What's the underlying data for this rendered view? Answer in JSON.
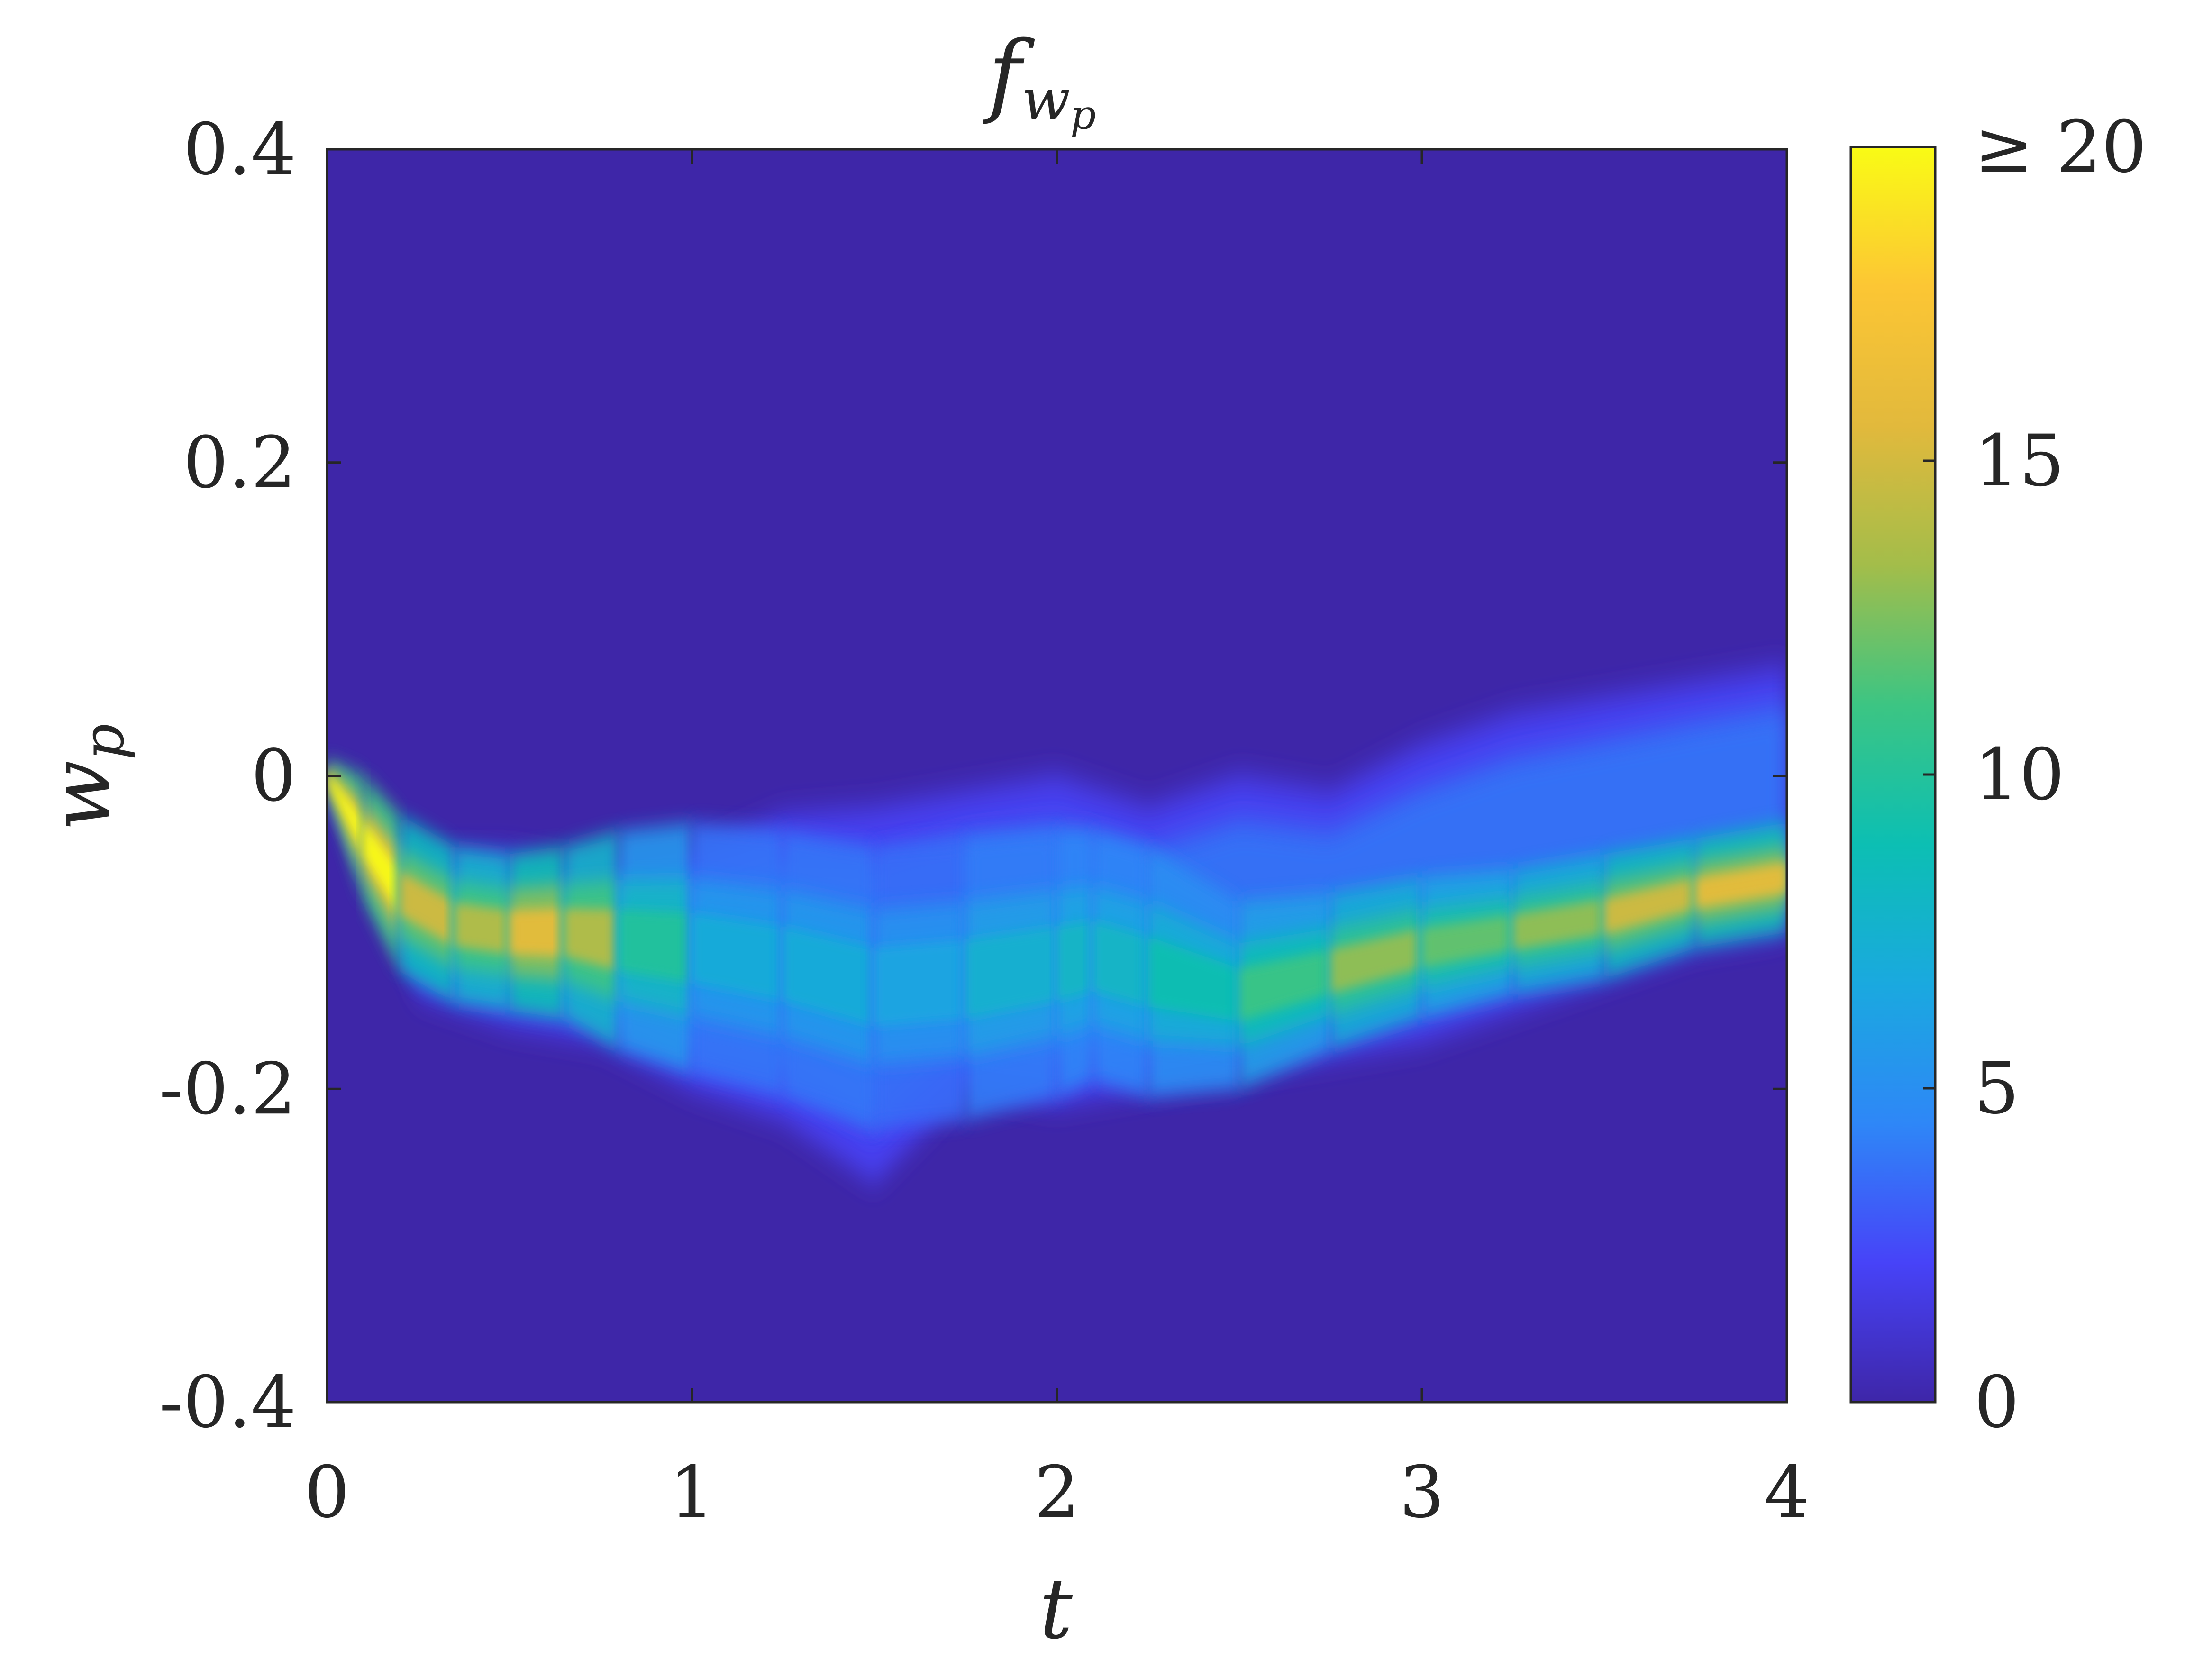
{
  "chart_data": {
    "type": "heatmap",
    "title": {
      "base": "f",
      "subscript": "w",
      "sub_subscript": "p"
    },
    "xlabel": "t",
    "ylabel": {
      "base": "w",
      "subscript": "p"
    },
    "xlim": [
      0,
      4
    ],
    "ylim": [
      -0.4,
      0.4
    ],
    "x_ticks": [
      0,
      1,
      2,
      3,
      4
    ],
    "x_tick_labels": [
      "0",
      "1",
      "2",
      "3",
      "4"
    ],
    "y_ticks": [
      -0.4,
      -0.2,
      0,
      0.2,
      0.4
    ],
    "y_tick_labels": [
      "-0.4",
      "-0.2",
      "0",
      "0.2",
      "0.4"
    ],
    "colorbar": {
      "range": [
        0,
        20
      ],
      "ticks": [
        0,
        5,
        10,
        15,
        20
      ],
      "tick_labels": [
        "0",
        "5",
        "10",
        "15",
        "≥ 20"
      ],
      "colormap": "parula",
      "colormap_stops": [
        "#3e26a8",
        "#4743f8",
        "#2e87f7",
        "#1aa9df",
        "#0cbfb3",
        "#3cc583",
        "#a3bd4a",
        "#e2b93c",
        "#fcc634",
        "#f9fb15"
      ]
    },
    "background_color": "#3e26a8",
    "density_ridge": {
      "description_units": "t, center w_p, half-width, peak density",
      "t": [
        0,
        0.1,
        0.2,
        0.35,
        0.5,
        0.65,
        0.8,
        1.0,
        1.25,
        1.5,
        1.75,
        2.0,
        2.1,
        2.25,
        2.5,
        2.75,
        3.0,
        3.25,
        3.5,
        3.75,
        4.0
      ],
      "center": [
        0,
        -0.04,
        -0.075,
        -0.095,
        -0.1,
        -0.1,
        -0.105,
        -0.11,
        -0.12,
        -0.135,
        -0.13,
        -0.12,
        -0.115,
        -0.125,
        -0.14,
        -0.125,
        -0.11,
        -0.1,
        -0.09,
        -0.075,
        -0.065
      ],
      "half_width": [
        0.01,
        0.04,
        0.05,
        0.05,
        0.05,
        0.055,
        0.07,
        0.08,
        0.085,
        0.09,
        0.09,
        0.085,
        0.08,
        0.08,
        0.06,
        0.05,
        0.045,
        0.04,
        0.04,
        0.035,
        0.035
      ],
      "peak": [
        20,
        20,
        15,
        14,
        16,
        14,
        10,
        7,
        7,
        6.5,
        7.5,
        8,
        8,
        9,
        11,
        13,
        12,
        13,
        15,
        16,
        15
      ]
    },
    "diffuse_band": {
      "description_units": "t, upper edge w_p, lower edge w_p, density level",
      "t": [
        0,
        0.25,
        0.5,
        0.75,
        1.0,
        1.25,
        1.5,
        1.75,
        2.0,
        2.25,
        2.5,
        2.75,
        3.0,
        3.25,
        3.5,
        3.75,
        4.0
      ],
      "upper": [
        0,
        -0.05,
        -0.05,
        -0.06,
        -0.05,
        -0.025,
        -0.02,
        -0.01,
        0.0,
        -0.02,
        0.0,
        -0.01,
        0.02,
        0.04,
        0.05,
        0.06,
        0.07
      ],
      "lower": [
        0,
        -0.14,
        -0.16,
        -0.17,
        -0.2,
        -0.22,
        -0.26,
        -0.2,
        -0.21,
        -0.2,
        -0.19,
        -0.18,
        -0.17,
        -0.15,
        -0.13,
        -0.11,
        -0.1
      ],
      "level": 4
    }
  }
}
